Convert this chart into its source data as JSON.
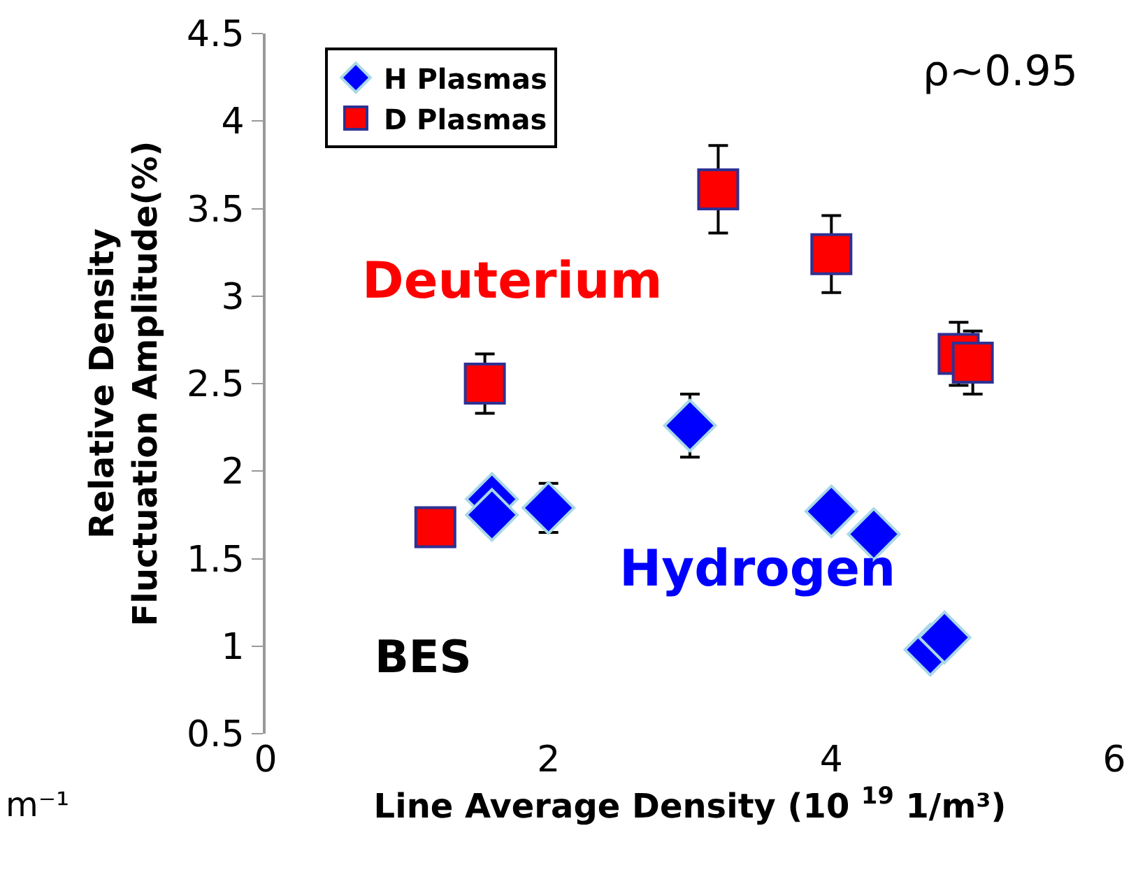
{
  "chart_data": {
    "type": "scatter",
    "xlabel": "Line Average Density (10 $^{19}$ 1/m³)",
    "ylabel": "Relative Density\nFluctuation Amplitude(%)",
    "xlim": [
      0,
      6
    ],
    "xticks": [
      0,
      2,
      4,
      6
    ],
    "ylim": [
      0.5,
      4.5
    ],
    "yticks": [
      0.5,
      1,
      1.5,
      2,
      2.5,
      3,
      3.5,
      4,
      4.5
    ],
    "grid": false,
    "legend": "top left",
    "series": [
      {
        "name": "H Plasmas",
        "color": "#0000ff",
        "marker": "diamond",
        "x": [
          1.6,
          1.6,
          2.0,
          3.0,
          4.0,
          4.3,
          4.7,
          4.8
        ],
        "values": [
          1.84,
          1.75,
          1.79,
          2.26,
          1.77,
          1.64,
          0.98,
          1.05
        ],
        "errors": [
          null,
          null,
          0.14,
          0.18,
          null,
          null,
          null,
          null
        ]
      },
      {
        "name": "D Plasmas",
        "color": "#ff0000",
        "marker": "square",
        "x": [
          1.2,
          1.55,
          3.2,
          4.0,
          4.9,
          5.0
        ],
        "values": [
          1.68,
          2.5,
          3.61,
          3.24,
          2.67,
          2.62
        ],
        "errors": [
          null,
          0.17,
          0.25,
          0.22,
          0.18,
          0.18
        ]
      }
    ],
    "annotations": [
      "ρ~0.95",
      "Deuterium",
      "Hydrogen",
      "BES",
      "m⁻¹"
    ]
  }
}
